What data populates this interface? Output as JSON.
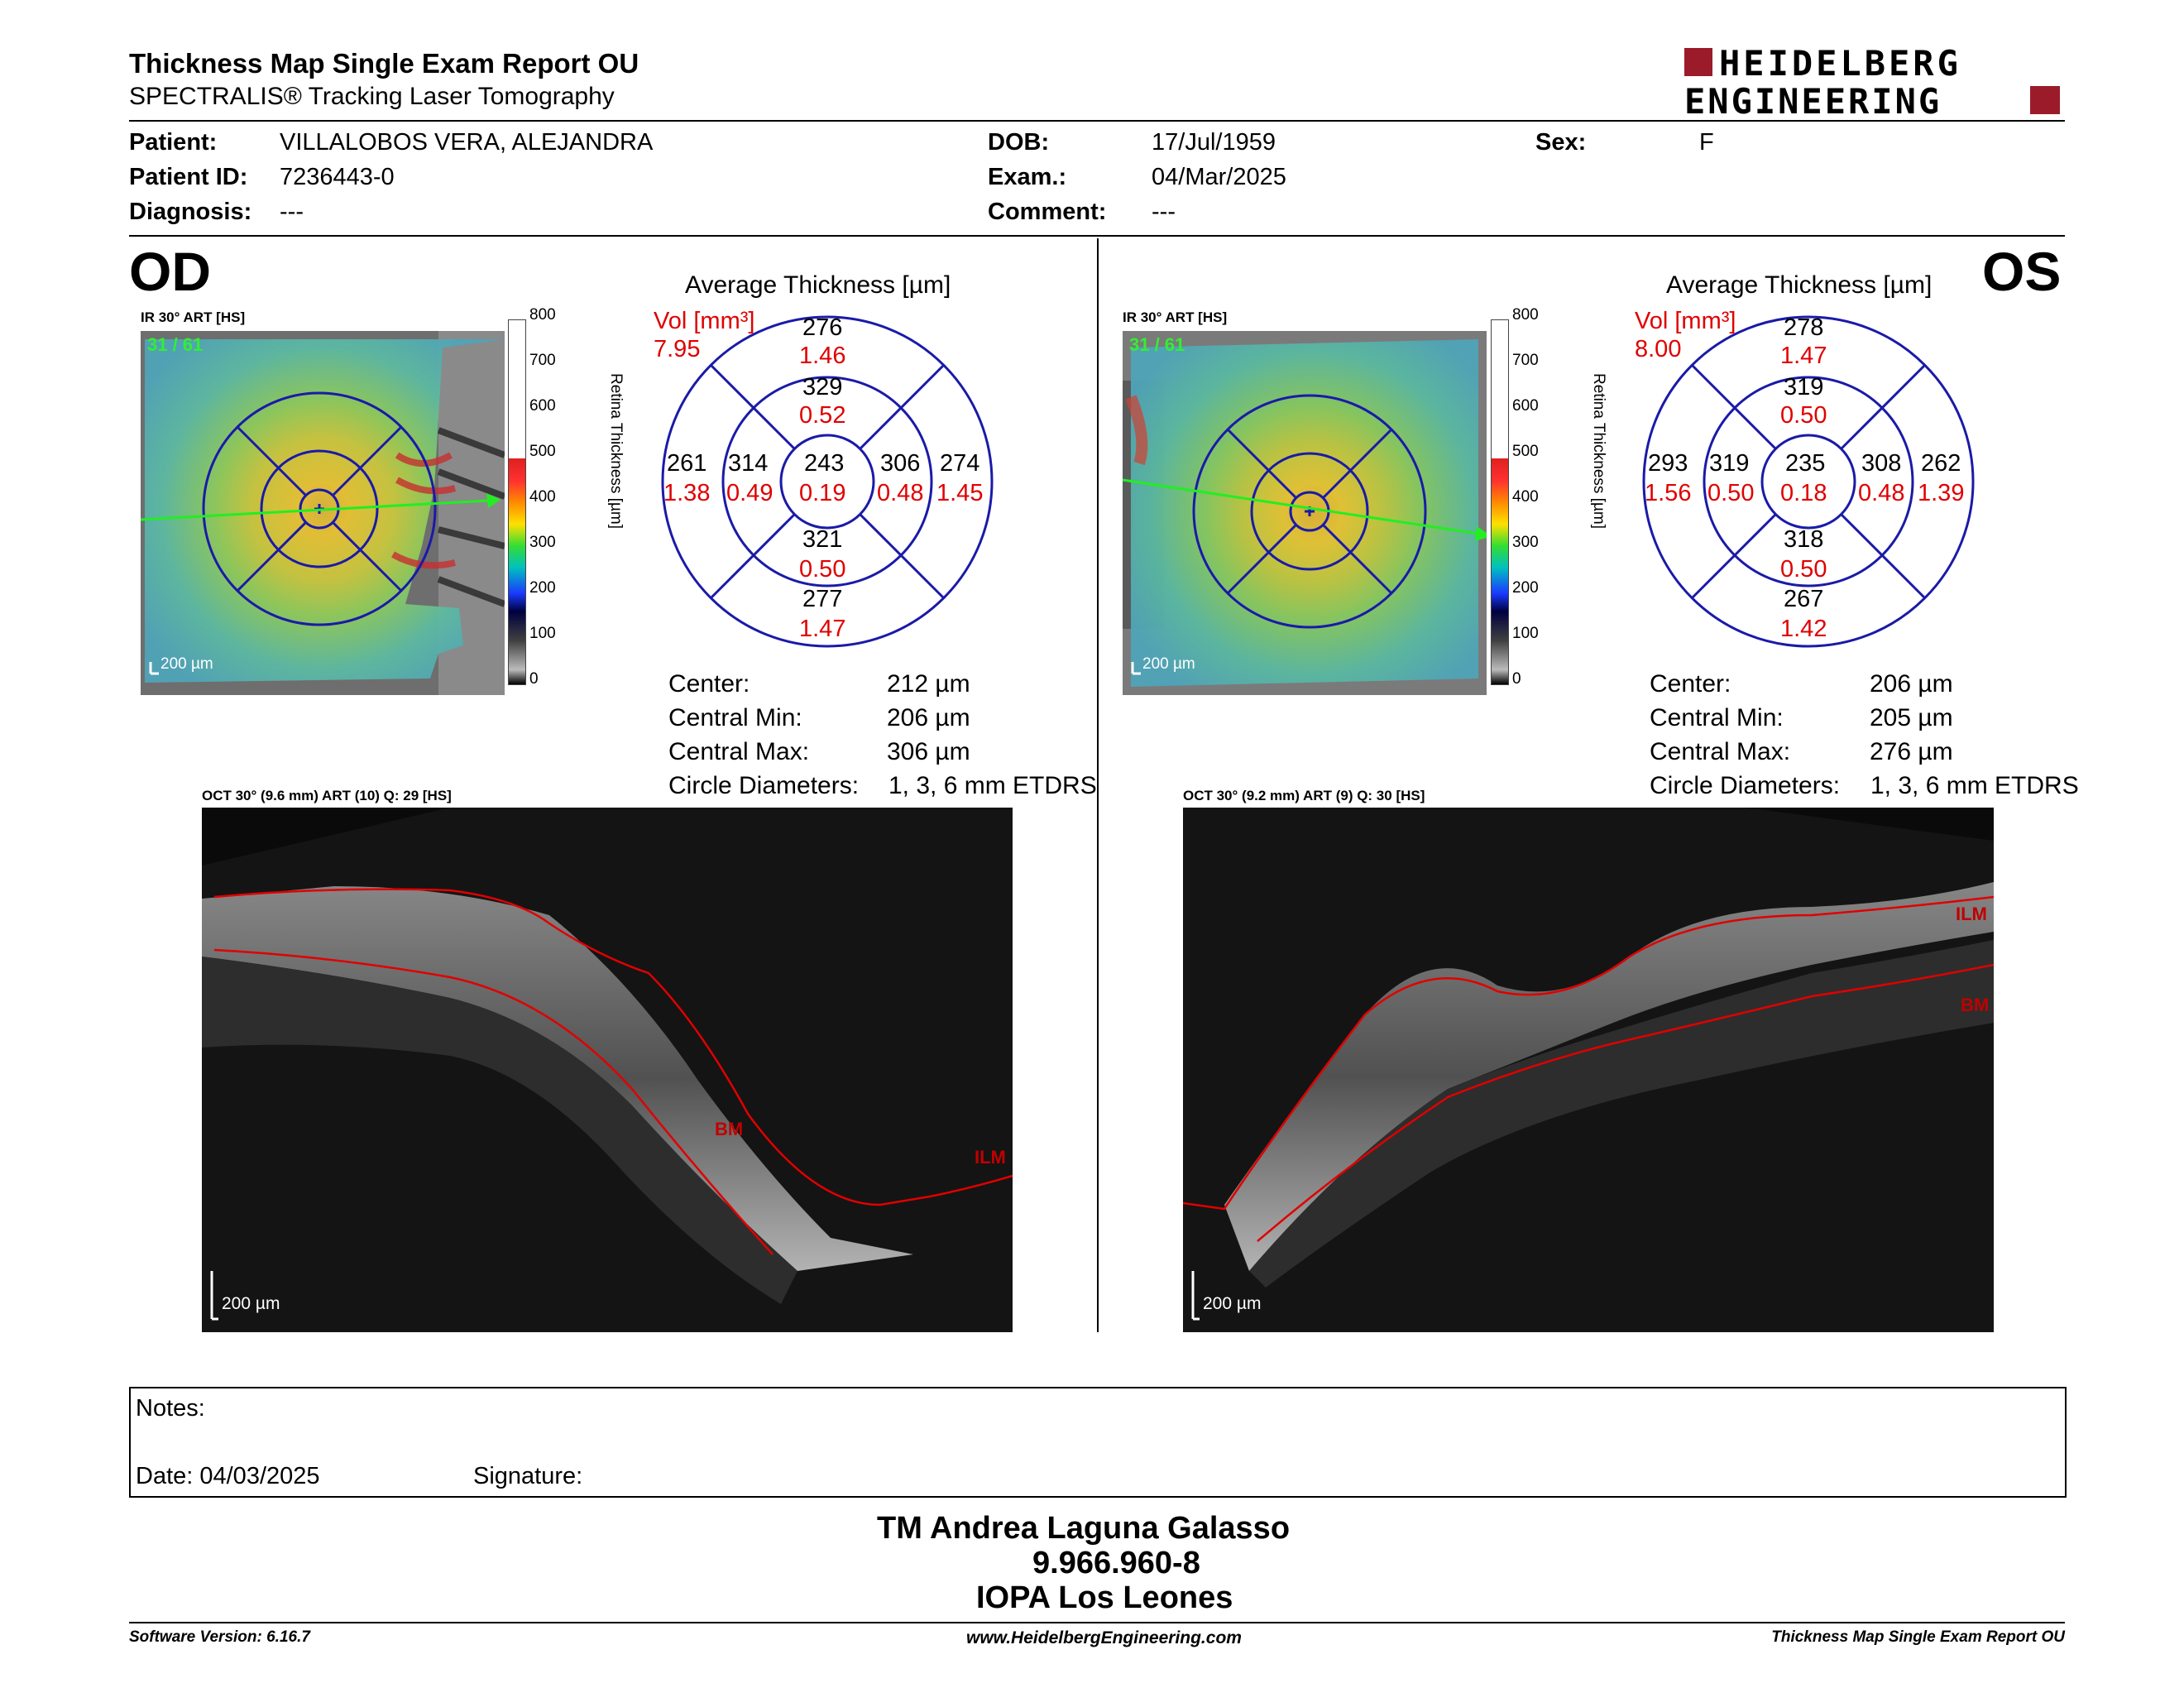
{
  "header": {
    "title": "Thickness Map Single Exam Report OU",
    "subtitle": "SPECTRALIS® Tracking Laser Tomography",
    "logo_line1": "HEIDELBERG",
    "logo_line2": "ENGINEERING"
  },
  "patient": {
    "patient_label": "Patient:",
    "patient_value": "VILLALOBOS VERA, ALEJANDRA",
    "id_label": "Patient ID:",
    "id_value": "7236443-0",
    "diag_label": "Diagnosis:",
    "diag_value": "---",
    "dob_label": "DOB:",
    "dob_value": "17/Jul/1959",
    "exam_label": "Exam.:",
    "exam_value": "04/Mar/2025",
    "comment_label": "Comment:",
    "comment_value": "---",
    "sex_label": "Sex:",
    "sex_value": "F"
  },
  "colorbar": {
    "ticks": [
      "800",
      "700",
      "600",
      "500",
      "400",
      "300",
      "200",
      "100",
      "0"
    ],
    "label": "Retina Thickness [µm]"
  },
  "od": {
    "eye": "OD",
    "ir_label": "IR 30° ART [HS]",
    "frame": "31 / 61",
    "scale": "200 µm",
    "avg_title": "Average Thickness [µm]",
    "vol_label": "Vol [mm³]",
    "vol_value": "7.95",
    "etdrs": {
      "outer_sup": "276",
      "outer_sup_vol": "1.46",
      "inner_sup": "329",
      "inner_sup_vol": "0.52",
      "outer_left": "261",
      "outer_left_vol": "1.38",
      "inner_left": "314",
      "inner_left_vol": "0.49",
      "center": "243",
      "center_vol": "0.19",
      "inner_right": "306",
      "inner_right_vol": "0.48",
      "outer_right": "274",
      "outer_right_vol": "1.45",
      "inner_inf": "321",
      "inner_inf_vol": "0.50",
      "outer_inf": "277",
      "outer_inf_vol": "1.47"
    },
    "stats": {
      "center_label": "Center:",
      "center_value": "212 µm",
      "min_label": "Central Min:",
      "min_value": "206 µm",
      "max_label": "Central Max:",
      "max_value": "306 µm",
      "diam_label": "Circle Diameters:",
      "diam_value": "1, 3, 6 mm ETDRS"
    },
    "oct_label": "OCT 30° (9.6 mm) ART (10) Q: 29 [HS]",
    "oct_scale": "200 µm",
    "ilm": "ILM",
    "bm": "BM"
  },
  "os": {
    "eye": "OS",
    "ir_label": "IR 30° ART [HS]",
    "frame": "31 / 61",
    "scale": "200 µm",
    "avg_title": "Average Thickness [µm]",
    "vol_label": "Vol [mm³]",
    "vol_value": "8.00",
    "etdrs": {
      "outer_sup": "278",
      "outer_sup_vol": "1.47",
      "inner_sup": "319",
      "inner_sup_vol": "0.50",
      "outer_left": "293",
      "outer_left_vol": "1.56",
      "inner_left": "319",
      "inner_left_vol": "0.50",
      "center": "235",
      "center_vol": "0.18",
      "inner_right": "308",
      "inner_right_vol": "0.48",
      "outer_right": "262",
      "outer_right_vol": "1.39",
      "inner_inf": "318",
      "inner_inf_vol": "0.50",
      "outer_inf": "267",
      "outer_inf_vol": "1.42"
    },
    "stats": {
      "center_label": "Center:",
      "center_value": "206 µm",
      "min_label": "Central Min:",
      "min_value": "205 µm",
      "max_label": "Central Max:",
      "max_value": "276 µm",
      "diam_label": "Circle Diameters:",
      "diam_value": "1, 3, 6 mm ETDRS"
    },
    "oct_label": "OCT 30° (9.2 mm) ART (9) Q: 30 [HS]",
    "oct_scale": "200 µm",
    "ilm": "ILM",
    "bm": "BM"
  },
  "notes": {
    "notes_label": "Notes:",
    "date_label": "Date: 04/03/2025",
    "signature_label": "Signature:"
  },
  "signer": {
    "name": "TM Andrea Laguna Galasso",
    "rut": "9.966.960-8",
    "org": "IOPA Los Leones"
  },
  "footer": {
    "software": "Software Version: 6.16.7",
    "website": "www.HeidelbergEngineering.com",
    "report": "Thickness Map Single Exam Report OU"
  },
  "colors": {
    "red": "#e00000",
    "blue": "#1a1aa8",
    "green": "#33ee33",
    "logo_red": "#9b1b2a"
  }
}
